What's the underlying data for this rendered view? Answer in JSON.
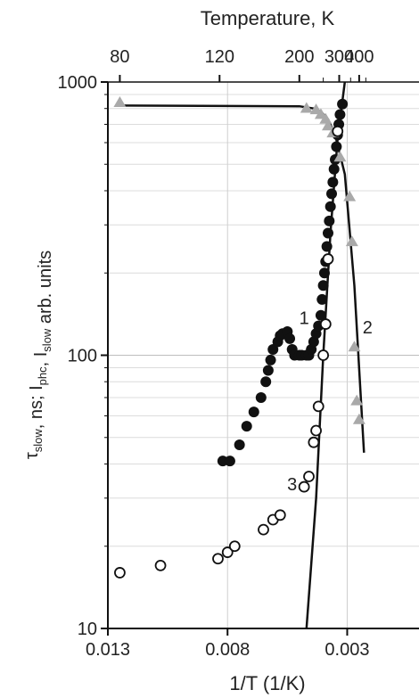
{
  "chart_data": {
    "type": "scatter",
    "x_scale": "reversed-linear",
    "y_scale": "log",
    "xlabel": "1/T (1/K)",
    "ylabel_parts": [
      {
        "text": "τ",
        "sub": "slow"
      },
      {
        "text": ", ns; I",
        "sub": "phc"
      },
      {
        "text": ", I",
        "sub": "slow"
      },
      {
        "text": " arb. units",
        "sub": ""
      }
    ],
    "top_axis_label": "Temperature, K",
    "xlim": [
      0.013,
      0.0
    ],
    "ylim": [
      10,
      1000
    ],
    "x_ticks": [
      0.013,
      0.008,
      0.003
    ],
    "x_tick_labels": [
      "0.013",
      "0.008",
      "0.003"
    ],
    "y_ticks": [
      10,
      100,
      1000
    ],
    "y_tick_labels": [
      "10",
      "100",
      "1000"
    ],
    "top_ticks": [
      80,
      120,
      200,
      300,
      400
    ],
    "top_tick_labels": [
      "80",
      "120",
      "200",
      "300",
      "400"
    ],
    "grid": true,
    "series": [
      {
        "label": "1",
        "marker": "filled-circle",
        "color": "#111111",
        "label_pos": [
          0.0048,
          130
        ],
        "points": [
          [
            0.0082,
            41
          ],
          [
            0.0079,
            41
          ],
          [
            0.0075,
            47
          ],
          [
            0.0072,
            55
          ],
          [
            0.0069,
            62
          ],
          [
            0.0066,
            70
          ],
          [
            0.0064,
            80
          ],
          [
            0.0063,
            88
          ],
          [
            0.0062,
            96
          ],
          [
            0.0061,
            105
          ],
          [
            0.0059,
            112
          ],
          [
            0.0058,
            118
          ],
          [
            0.0057,
            120
          ],
          [
            0.0055,
            122
          ],
          [
            0.0054,
            115
          ],
          [
            0.0053,
            105
          ],
          [
            0.0052,
            100
          ],
          [
            0.005,
            100
          ],
          [
            0.0049,
            100
          ],
          [
            0.0047,
            100
          ],
          [
            0.0046,
            100
          ],
          [
            0.0045,
            105
          ],
          [
            0.0044,
            112
          ],
          [
            0.0043,
            120
          ],
          [
            0.0042,
            128
          ],
          [
            0.0041,
            140
          ],
          [
            0.00405,
            160
          ],
          [
            0.004,
            180
          ],
          [
            0.00395,
            200
          ],
          [
            0.0039,
            220
          ],
          [
            0.00385,
            250
          ],
          [
            0.0038,
            280
          ],
          [
            0.00375,
            310
          ],
          [
            0.0037,
            350
          ],
          [
            0.00365,
            390
          ],
          [
            0.0036,
            430
          ],
          [
            0.00355,
            480
          ],
          [
            0.0035,
            520
          ],
          [
            0.00345,
            580
          ],
          [
            0.0034,
            640
          ],
          [
            0.00335,
            700
          ],
          [
            0.0033,
            760
          ],
          [
            0.0032,
            830
          ]
        ]
      },
      {
        "label": "2",
        "marker": "triangle",
        "color": "#a9a9a9",
        "label_pos": [
          0.00215,
          120
        ],
        "points": [
          [
            0.0125,
            840
          ],
          [
            0.0047,
            800
          ],
          [
            0.0043,
            790
          ],
          [
            0.0041,
            760
          ],
          [
            0.0039,
            730
          ],
          [
            0.0038,
            690
          ],
          [
            0.0036,
            650
          ],
          [
            0.0033,
            530
          ],
          [
            0.0029,
            380
          ],
          [
            0.0028,
            260
          ],
          [
            0.0027,
            107
          ],
          [
            0.0026,
            68
          ],
          [
            0.0025,
            58
          ]
        ]
      },
      {
        "label": "3",
        "marker": "open-circle",
        "color": "#111111",
        "label_pos": [
          0.0053,
          32
        ],
        "points": [
          [
            0.0125,
            16
          ],
          [
            0.0108,
            17
          ],
          [
            0.0084,
            18
          ],
          [
            0.008,
            19
          ],
          [
            0.0077,
            20
          ],
          [
            0.0065,
            23
          ],
          [
            0.0061,
            25
          ],
          [
            0.0058,
            26
          ],
          [
            0.0048,
            33
          ],
          [
            0.0046,
            36
          ],
          [
            0.0044,
            48
          ],
          [
            0.0043,
            53
          ],
          [
            0.0042,
            65
          ],
          [
            0.004,
            100
          ],
          [
            0.0039,
            130
          ],
          [
            0.0038,
            225
          ],
          [
            0.0034,
            660
          ]
        ]
      }
    ],
    "fit_lines": [
      {
        "name": "fit-1",
        "points": [
          [
            0.0125,
            820
          ],
          [
            0.005,
            815
          ],
          [
            0.0044,
            800
          ],
          [
            0.0041,
            780
          ],
          [
            0.0038,
            730
          ],
          [
            0.0035,
            640
          ],
          [
            0.0031,
            460
          ],
          [
            0.0027,
            180
          ],
          [
            0.0023,
            44
          ]
        ]
      },
      {
        "name": "fit-3",
        "points": [
          [
            0.0047,
            10
          ],
          [
            0.0043,
            30
          ],
          [
            0.004,
            100
          ],
          [
            0.0037,
            280
          ],
          [
            0.0034,
            620
          ],
          [
            0.0031,
            1000
          ]
        ]
      }
    ]
  }
}
